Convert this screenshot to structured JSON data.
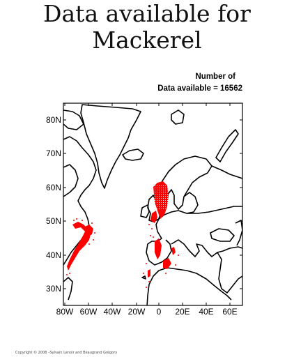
{
  "title": {
    "line1": "Data available for",
    "line2": "Mackerel"
  },
  "count": {
    "line1": "Number of",
    "line2": "Data available = 16562"
  },
  "map": {
    "lat_labels": [
      "80N",
      "70N",
      "60N",
      "50N",
      "40N",
      "30N"
    ],
    "lon_labels": [
      "80W",
      "60W",
      "40W",
      "20W",
      "0",
      "20E",
      "40E",
      "60E"
    ],
    "lon_range": [
      -80,
      70
    ],
    "lat_range": [
      25,
      85
    ],
    "coast_color": "#000000",
    "data_color": "#ff0000"
  },
  "copyright": "Copyright © 2008 –Sylvain Lenoir and Beaugrand Grégory"
}
